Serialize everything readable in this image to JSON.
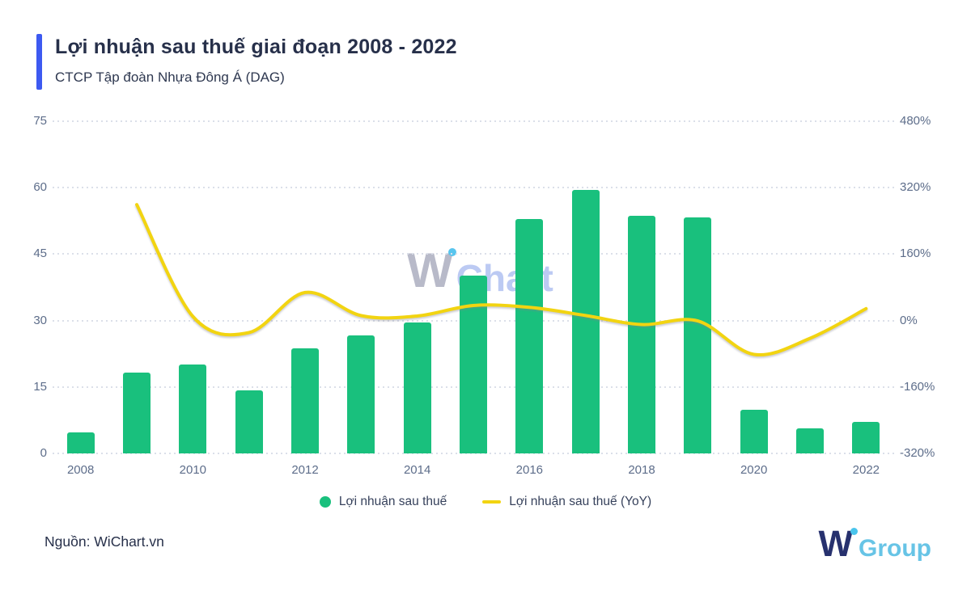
{
  "header": {
    "title": "Lợi nhuận sau thuế giai đoạn 2008 - 2022",
    "subtitle": "CTCP Tập đoàn Nhựa Đông Á (DAG)"
  },
  "watermark": {
    "w": "W",
    "chart": "Chart"
  },
  "legend": {
    "bar_label": "Lợi nhuận sau thuế",
    "line_label": "Lợi nhuận sau thuế (YoY)"
  },
  "footer": {
    "source": "Nguồn: WiChart.vn",
    "logo_w": "W",
    "logo_group": "Group"
  },
  "colors": {
    "bar": "#19c07d",
    "line": "#f2d411",
    "accent": "#3d5af1",
    "axis_text": "#5d6d8a",
    "grid": "#dbdfe9",
    "title_text": "#27304a"
  },
  "chart_data": {
    "type": "bar",
    "title": "Lợi nhuận sau thuế giai đoạn 2008 - 2022",
    "subtitle": "CTCP Tập đoàn Nhựa Đông Á (DAG)",
    "categories": [
      "2008",
      "2009",
      "2010",
      "2011",
      "2012",
      "2013",
      "2014",
      "2015",
      "2016",
      "2017",
      "2018",
      "2019",
      "2020",
      "2021",
      "2022"
    ],
    "series": [
      {
        "name": "Lợi nhuận sau thuế",
        "type": "bar",
        "axis": "left",
        "values": [
          4.8,
          18.2,
          20.0,
          14.2,
          23.8,
          26.6,
          29.5,
          40.2,
          53.0,
          59.4,
          53.7,
          53.2,
          9.8,
          5.6,
          7.2
        ]
      },
      {
        "name": "Lợi nhuận sau thuế (YoY)",
        "type": "line",
        "axis": "right",
        "values": [
          null,
          279.2,
          9.9,
          -29.0,
          67.6,
          11.8,
          10.9,
          36.3,
          31.8,
          12.1,
          -9.6,
          -0.9,
          -81.6,
          -42.9,
          28.6
        ]
      }
    ],
    "left_axis": {
      "min": 0,
      "max": 75,
      "ticks": [
        0,
        15,
        30,
        45,
        60,
        75
      ]
    },
    "right_axis": {
      "min": -320,
      "max": 480,
      "ticks": [
        -320,
        -160,
        0,
        160,
        320,
        480
      ],
      "tick_labels": [
        "-320%",
        "-160%",
        "0%",
        "160%",
        "320%",
        "480%"
      ]
    },
    "x_tick_labels": [
      "2008",
      "2010",
      "2012",
      "2014",
      "2016",
      "2018",
      "2020",
      "2022"
    ],
    "grid": "dotted horizontal",
    "legend_position": "bottom"
  }
}
